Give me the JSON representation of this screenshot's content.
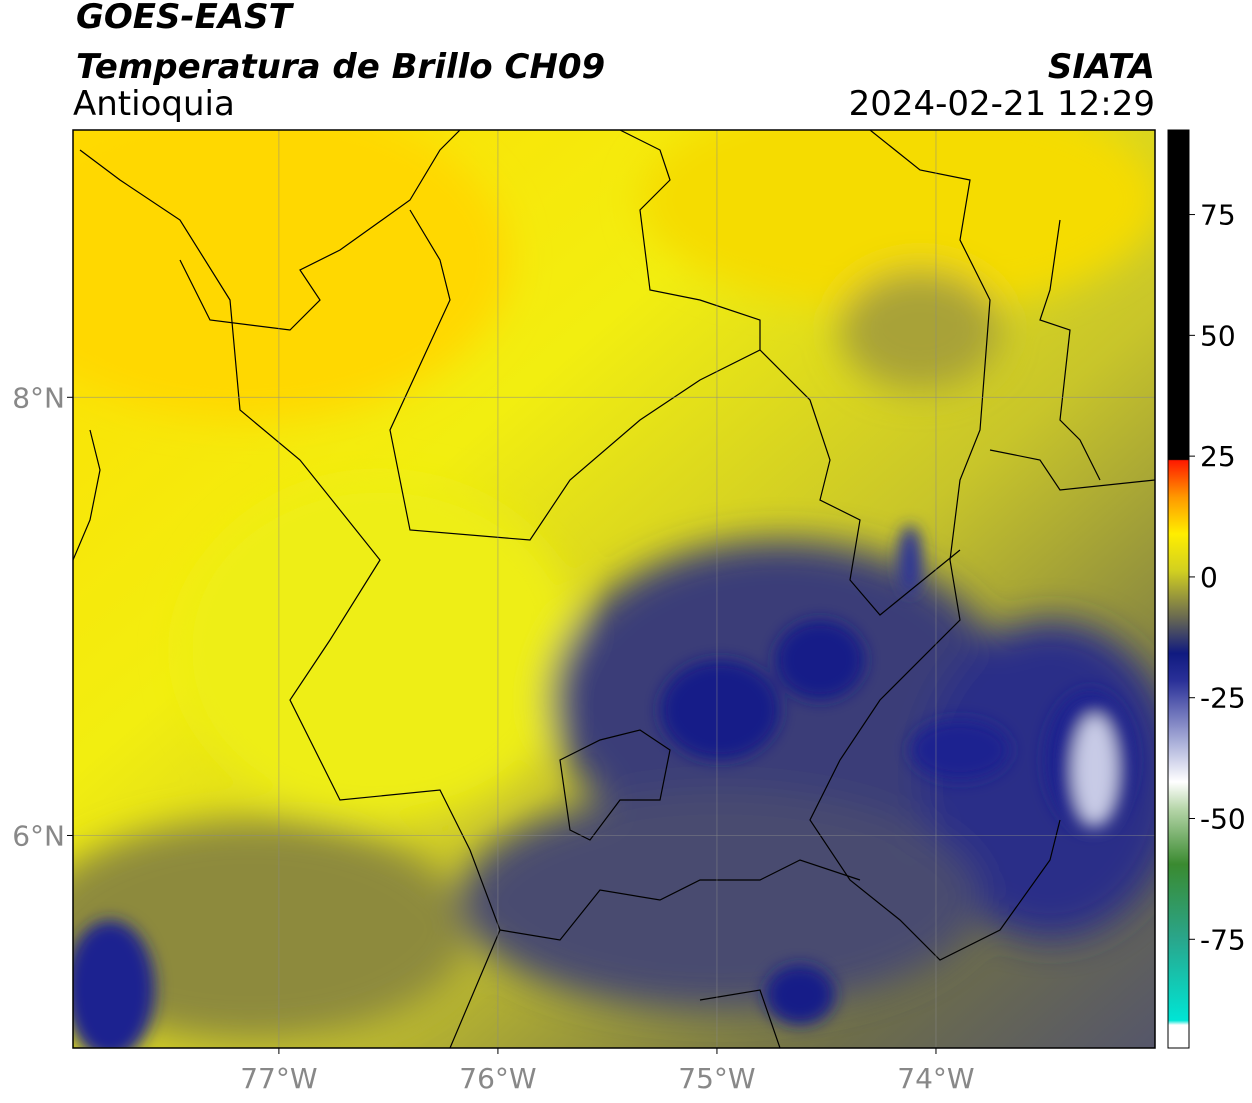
{
  "header": {
    "title": "GOES-EAST",
    "subtitle": "Temperatura de Brillo CH09",
    "region": "Antioquia",
    "source": "SIATA",
    "datetime": "2024-02-21 12:29"
  },
  "map": {
    "xlim": [
      -77.94,
      -73.0
    ],
    "ylim": [
      5.03,
      9.22
    ],
    "lon_ticks": [
      {
        "value": -77,
        "label": "77°W"
      },
      {
        "value": -76,
        "label": "76°W"
      },
      {
        "value": -75,
        "label": "75°W"
      },
      {
        "value": -74,
        "label": "74°W"
      }
    ],
    "lat_ticks": [
      {
        "value": 8,
        "label": "8°N"
      },
      {
        "value": 6,
        "label": "6°N"
      }
    ],
    "grid": true
  },
  "colorbar": {
    "lim": [
      -97.5,
      92.5
    ],
    "ticks": [
      75,
      50,
      25,
      0,
      -25,
      -50,
      -75
    ]
  }
}
